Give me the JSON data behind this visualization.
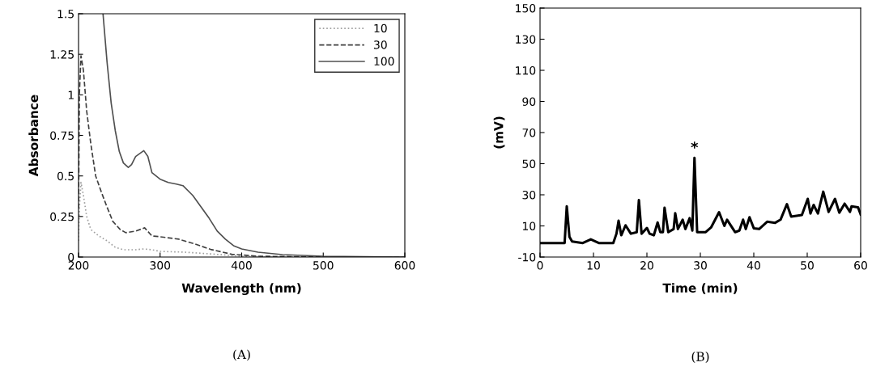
{
  "chart_data": [
    {
      "type": "line",
      "xlabel": "Wavelength (nm)",
      "ylabel": "Absorbance",
      "xlim": [
        200,
        600
      ],
      "ylim": [
        0,
        1.5
      ],
      "xticks": [
        200,
        300,
        400,
        500,
        600
      ],
      "yticks": [
        0,
        0.25,
        0.5,
        0.75,
        1,
        1.25,
        1.5
      ],
      "grid": false,
      "legend": "top right",
      "marker": "none",
      "annotations": [
        "(A)"
      ],
      "series": [
        {
          "name": "10",
          "color": "#a0a0a0",
          "line_style": "dotted",
          "x": [
            200,
            201,
            203,
            206,
            210,
            215,
            225,
            235,
            245,
            255,
            270,
            280,
            290,
            300,
            330,
            360,
            400,
            450,
            600
          ],
          "values": [
            0.1,
            0.3,
            0.46,
            0.38,
            0.25,
            0.17,
            0.13,
            0.1,
            0.06,
            0.045,
            0.045,
            0.05,
            0.045,
            0.035,
            0.03,
            0.02,
            0.005,
            0,
            0
          ]
        },
        {
          "name": "30",
          "color": "#404040",
          "line_style": "dashed",
          "x": [
            200,
            201,
            203,
            206,
            210,
            215,
            221,
            228,
            234,
            242,
            251,
            258,
            270,
            281,
            290,
            300,
            323,
            343,
            362,
            388,
            420,
            500,
            600
          ],
          "values": [
            0.3,
            1.0,
            1.24,
            1.15,
            0.9,
            0.7,
            0.5,
            0.4,
            0.32,
            0.22,
            0.17,
            0.15,
            0.16,
            0.18,
            0.13,
            0.125,
            0.11,
            0.08,
            0.047,
            0.017,
            0.005,
            0,
            0
          ]
        },
        {
          "name": "100",
          "color": "#505050",
          "line_style": "solid",
          "x": [
            230,
            235,
            240,
            245,
            250,
            255,
            261,
            265,
            270,
            280,
            285,
            290,
            300,
            310,
            320,
            328,
            340,
            350,
            360,
            370,
            380,
            390,
            400,
            420,
            450,
            500,
            550,
            600
          ],
          "values": [
            1.5,
            1.2,
            0.95,
            0.78,
            0.65,
            0.58,
            0.553,
            0.57,
            0.62,
            0.656,
            0.62,
            0.52,
            0.48,
            0.46,
            0.45,
            0.44,
            0.38,
            0.31,
            0.24,
            0.16,
            0.11,
            0.07,
            0.05,
            0.03,
            0.015,
            0.005,
            0.002,
            0
          ]
        }
      ]
    },
    {
      "type": "line",
      "xlabel": "Time (min)",
      "ylabel": "(mV)",
      "xlim": [
        0,
        60
      ],
      "ylim": [
        -10,
        150
      ],
      "xticks": [
        0,
        10,
        20,
        30,
        40,
        50,
        60
      ],
      "yticks": [
        -10,
        10,
        30,
        50,
        70,
        90,
        110,
        130,
        150
      ],
      "grid": false,
      "legend": false,
      "marker": "none",
      "annotations": [
        {
          "text": "*",
          "x": 28.9,
          "y": 53.8
        },
        "(B)"
      ],
      "series": [
        {
          "color": "#000000",
          "line_style": "solid",
          "x": [
            0,
            4.6,
            5,
            5.5,
            6,
            8,
            9.5,
            11,
            13.7,
            14.3,
            14.7,
            15.2,
            16,
            17,
            18.1,
            18.5,
            19,
            20,
            20.5,
            21.3,
            22,
            22.5,
            23,
            23.3,
            24,
            25,
            25.3,
            25.8,
            26.7,
            27.2,
            28,
            28.5,
            28.9,
            29.4,
            31,
            32,
            33.5,
            34.5,
            35,
            36.5,
            37.3,
            38,
            38.5,
            39.2,
            40,
            41,
            42.5,
            44,
            45,
            46.2,
            47,
            49,
            50.1,
            50.6,
            51.2,
            52,
            53,
            54,
            55.2,
            56,
            57,
            58,
            58.3,
            59.5,
            60
          ],
          "values": [
            -1,
            -1,
            22.6,
            3,
            0,
            -1,
            1.4,
            -1,
            -1,
            5,
            13.4,
            4,
            10.4,
            5,
            6,
            26.6,
            5,
            8.7,
            5,
            4,
            12.2,
            6,
            6,
            21.7,
            6,
            8,
            18.2,
            8,
            14,
            8,
            15,
            7,
            53.8,
            6,
            6,
            9,
            18.8,
            10,
            14,
            6,
            7,
            14,
            8,
            15.6,
            8.5,
            8,
            12.7,
            12,
            14,
            24,
            16,
            17,
            27.4,
            18,
            23.5,
            18,
            32,
            19,
            27.4,
            18.5,
            24.3,
            19,
            22.6,
            22,
            17.4
          ]
        }
      ]
    }
  ]
}
